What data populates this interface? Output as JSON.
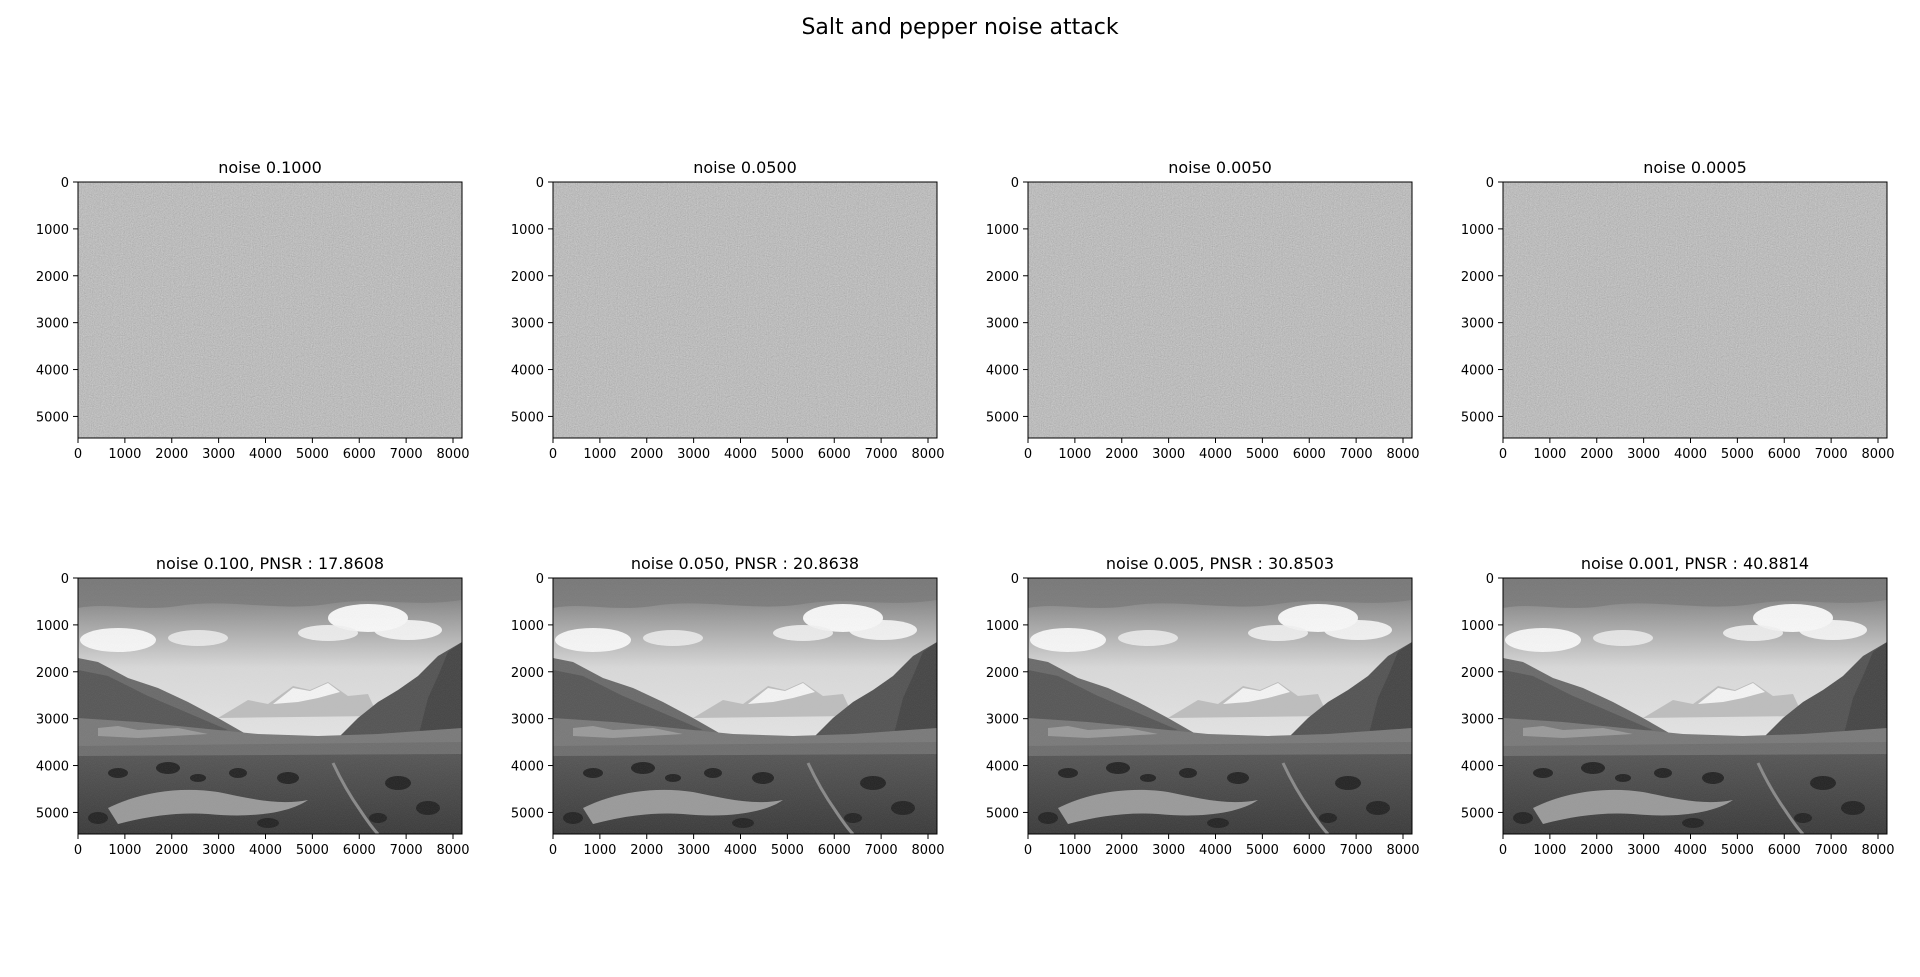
{
  "figure": {
    "title": "Salt and pepper noise attack"
  },
  "chart_data": [
    {
      "type": "image",
      "row": 1,
      "title": "noise 0.1000",
      "content": "uniform-gray-noise",
      "xlim": [
        0,
        8192
      ],
      "ylim": [
        5460,
        0
      ],
      "xticks": [
        0,
        1000,
        2000,
        3000,
        4000,
        5000,
        6000,
        7000,
        8000
      ],
      "yticks": [
        0,
        1000,
        2000,
        3000,
        4000,
        5000
      ]
    },
    {
      "type": "image",
      "row": 1,
      "title": "noise 0.0500",
      "content": "uniform-gray-noise",
      "xlim": [
        0,
        8192
      ],
      "ylim": [
        5460,
        0
      ],
      "xticks": [
        0,
        1000,
        2000,
        3000,
        4000,
        5000,
        6000,
        7000,
        8000
      ],
      "yticks": [
        0,
        1000,
        2000,
        3000,
        4000,
        5000
      ]
    },
    {
      "type": "image",
      "row": 1,
      "title": "noise 0.0050",
      "content": "uniform-gray-noise",
      "xlim": [
        0,
        8192
      ],
      "ylim": [
        5460,
        0
      ],
      "xticks": [
        0,
        1000,
        2000,
        3000,
        4000,
        5000,
        6000,
        7000,
        8000
      ],
      "yticks": [
        0,
        1000,
        2000,
        3000,
        4000,
        5000
      ]
    },
    {
      "type": "image",
      "row": 1,
      "title": "noise 0.0005",
      "content": "uniform-gray-noise",
      "xlim": [
        0,
        8192
      ],
      "ylim": [
        5460,
        0
      ],
      "xticks": [
        0,
        1000,
        2000,
        3000,
        4000,
        5000,
        6000,
        7000,
        8000
      ],
      "yticks": [
        0,
        1000,
        2000,
        3000,
        4000,
        5000
      ]
    },
    {
      "type": "image",
      "row": 2,
      "title": "noise 0.100, PNSR : 17.8608",
      "content": "grayscale-mountain-valley-landscape",
      "xlim": [
        0,
        8192
      ],
      "ylim": [
        5460,
        0
      ],
      "xticks": [
        0,
        1000,
        2000,
        3000,
        4000,
        5000,
        6000,
        7000,
        8000
      ],
      "yticks": [
        0,
        1000,
        2000,
        3000,
        4000,
        5000
      ]
    },
    {
      "type": "image",
      "row": 2,
      "title": "noise 0.050, PNSR : 20.8638",
      "content": "grayscale-mountain-valley-landscape",
      "xlim": [
        0,
        8192
      ],
      "ylim": [
        5460,
        0
      ],
      "xticks": [
        0,
        1000,
        2000,
        3000,
        4000,
        5000,
        6000,
        7000,
        8000
      ],
      "yticks": [
        0,
        1000,
        2000,
        3000,
        4000,
        5000
      ]
    },
    {
      "type": "image",
      "row": 2,
      "title": "noise 0.005, PNSR : 30.8503",
      "content": "grayscale-mountain-valley-landscape",
      "xlim": [
        0,
        8192
      ],
      "ylim": [
        5460,
        0
      ],
      "xticks": [
        0,
        1000,
        2000,
        3000,
        4000,
        5000,
        6000,
        7000,
        8000
      ],
      "yticks": [
        0,
        1000,
        2000,
        3000,
        4000,
        5000
      ]
    },
    {
      "type": "image",
      "row": 2,
      "title": "noise 0.001, PNSR : 40.8814",
      "content": "grayscale-mountain-valley-landscape",
      "xlim": [
        0,
        8192
      ],
      "ylim": [
        5460,
        0
      ],
      "xticks": [
        0,
        1000,
        2000,
        3000,
        4000,
        5000,
        6000,
        7000,
        8000
      ],
      "yticks": [
        0,
        1000,
        2000,
        3000,
        4000,
        5000
      ]
    }
  ]
}
